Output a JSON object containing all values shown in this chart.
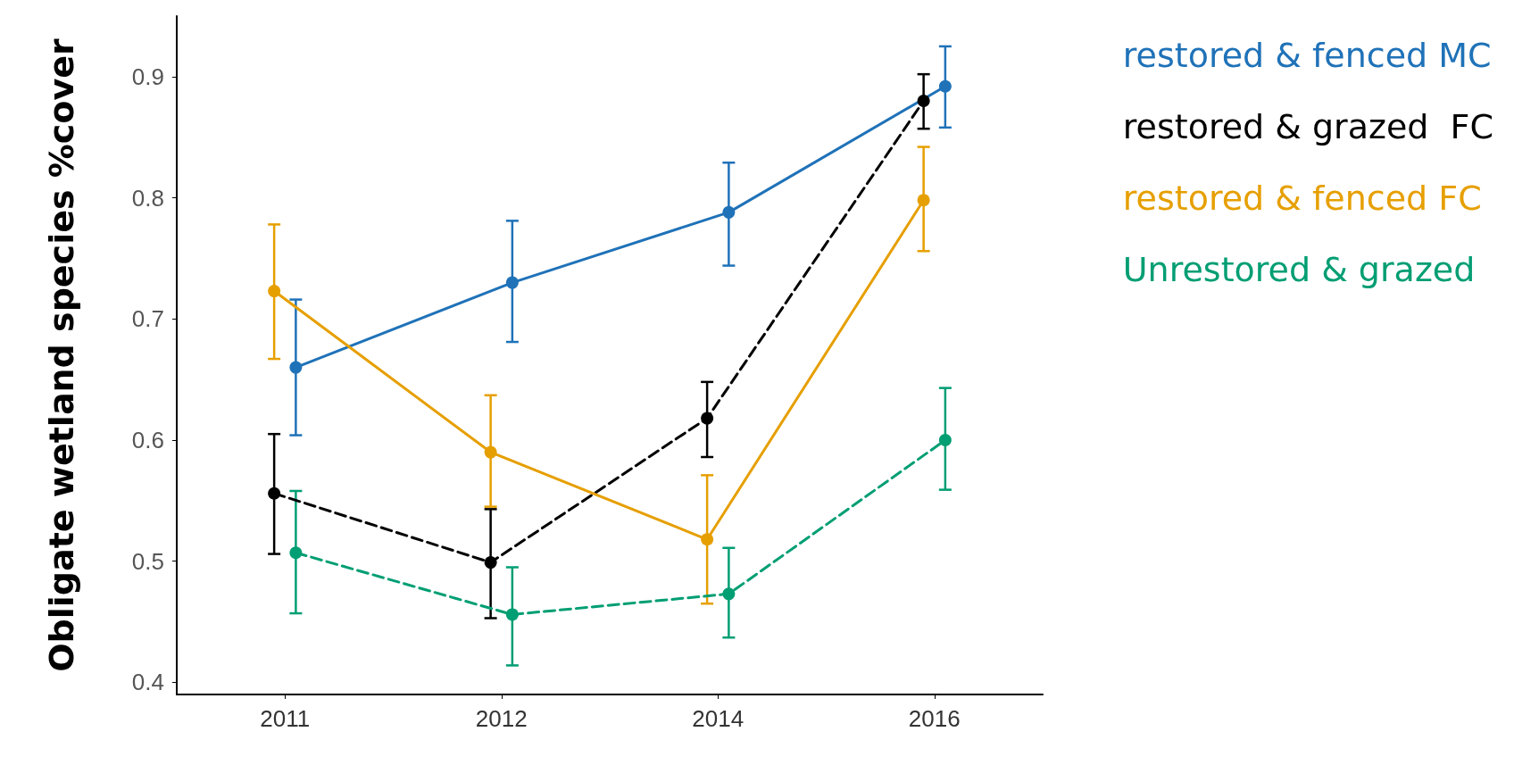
{
  "chart_data": {
    "type": "line",
    "ylabel": "Obligate wetland species %cover",
    "categories": [
      "2011",
      "2012",
      "2014",
      "2016"
    ],
    "ylim": [
      0.39,
      0.95
    ],
    "yticks": [
      0.4,
      0.5,
      0.6,
      0.7,
      0.8,
      0.9
    ],
    "grid": false,
    "legend": "right",
    "marker": "circle",
    "series": [
      {
        "name": "restored & fenced MC",
        "color": "#1f72b8",
        "line_style": "solid",
        "values": [
          0.66,
          0.73,
          0.788,
          0.892
        ],
        "errors": [
          [
            0.604,
            0.716
          ],
          [
            0.681,
            0.781
          ],
          [
            0.744,
            0.829
          ],
          [
            0.858,
            0.925
          ]
        ]
      },
      {
        "name": "restored & grazed  FC",
        "color": "#000000",
        "line_style": "dashed",
        "values": [
          0.556,
          0.499,
          0.618,
          0.88
        ],
        "errors": [
          [
            0.506,
            0.605
          ],
          [
            0.453,
            0.543
          ],
          [
            0.586,
            0.648
          ],
          [
            0.857,
            0.902
          ]
        ]
      },
      {
        "name": "restored & fenced FC",
        "color": "#e69f00",
        "line_style": "solid",
        "values": [
          0.723,
          0.59,
          0.518,
          0.798
        ],
        "errors": [
          [
            0.667,
            0.778
          ],
          [
            0.545,
            0.637
          ],
          [
            0.465,
            0.571
          ],
          [
            0.756,
            0.842
          ]
        ]
      },
      {
        "name": "Unrestored & grazed",
        "color": "#009e73",
        "line_style": "dashed",
        "values": [
          0.507,
          0.456,
          0.473,
          0.6
        ],
        "errors": [
          [
            0.457,
            0.558
          ],
          [
            0.414,
            0.495
          ],
          [
            0.437,
            0.511
          ],
          [
            0.559,
            0.643
          ]
        ]
      }
    ]
  }
}
